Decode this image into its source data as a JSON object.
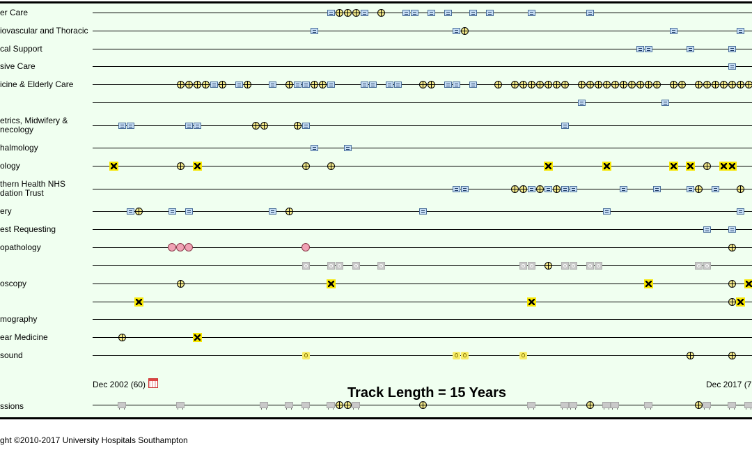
{
  "tracks": [
    {
      "label": "er Care"
    },
    {
      "label": "iovascular and Thoracic"
    },
    {
      "label": "cal Support"
    },
    {
      "label": "sive Care"
    },
    {
      "label": "icine & Elderly Care"
    },
    {
      "label": ""
    },
    {
      "label": "etrics, Midwifery &\nnecology"
    },
    {
      "label": "halmology"
    },
    {
      "label": "ology"
    },
    {
      "label": "thern Health NHS\ndation Trust"
    },
    {
      "label": "ery"
    },
    {
      "label": "est Requesting"
    },
    {
      "label": "opathology"
    },
    {
      "label": ""
    },
    {
      "label": "oscopy"
    },
    {
      "label": ""
    },
    {
      "label": "mography"
    },
    {
      "label": "ear Medicine"
    },
    {
      "label": "sound"
    }
  ],
  "timeline": {
    "start_label": "Dec 2002 (60)",
    "end_label": "Dec 2017 (7",
    "track_length_label": "Track Length = 15 Years"
  },
  "admissions": {
    "label": "ssions"
  },
  "footer": {
    "copyright": "ght ©2010-2017 University Hospitals Southampton"
  },
  "colors": {
    "panel_bg": "#f0fff0",
    "document_event": "#c6ddf4",
    "procedure_event": "#f5ec8c",
    "alert_event": "#f7e600",
    "pathology_event": "#f0a2b4",
    "grey_event": "#c8c8c8"
  }
}
